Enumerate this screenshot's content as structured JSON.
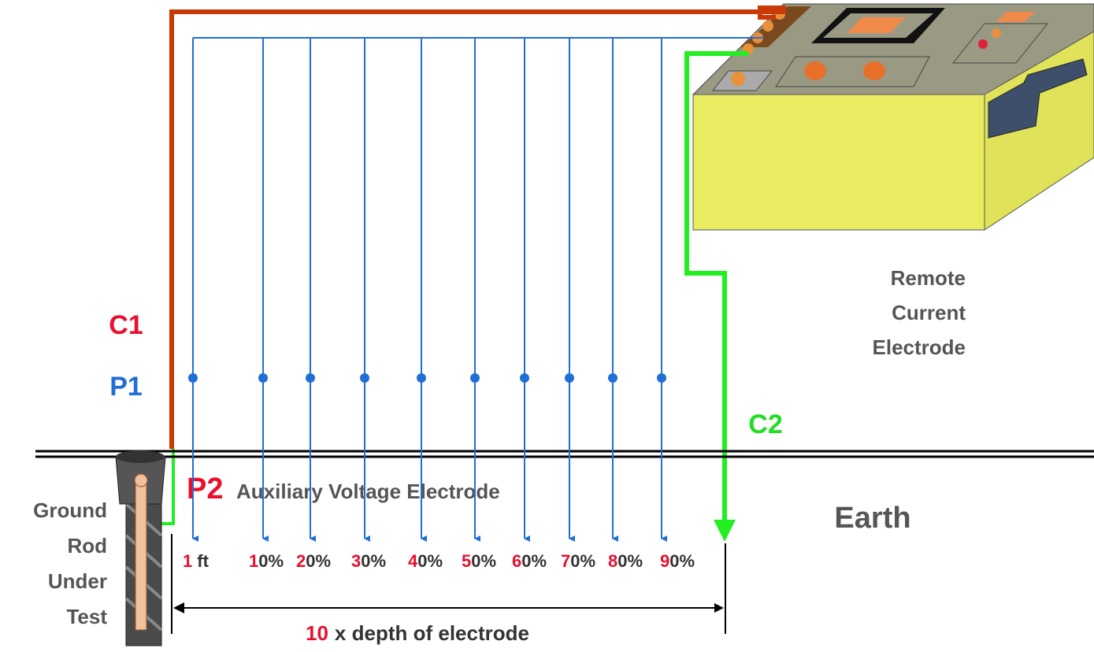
{
  "labels": {
    "c1": "C1",
    "p1": "P1",
    "c2": "C2",
    "p2": "P2",
    "auxiliary": "Auxiliary Voltage Electrode",
    "remote": [
      "Remote",
      "Current",
      "Electrode"
    ],
    "earth": "Earth",
    "ground_rod": [
      "Ground",
      "Rod",
      "Under",
      "Test"
    ]
  },
  "positions": [
    {
      "lead": "1",
      "rest": "ft"
    },
    {
      "lead": "1",
      "rest": "0%"
    },
    {
      "lead": "2",
      "rest": "0%"
    },
    {
      "lead": "3",
      "rest": "0%"
    },
    {
      "lead": "4",
      "rest": "0%"
    },
    {
      "lead": "5",
      "rest": "0%"
    },
    {
      "lead": "6",
      "rest": "0%"
    },
    {
      "lead": "7",
      "rest": "0%"
    },
    {
      "lead": "8",
      "rest": "0%"
    },
    {
      "lead": "9",
      "rest": "0%"
    }
  ],
  "distance": {
    "lead": "10",
    "rest": "x depth of electrode"
  }
}
